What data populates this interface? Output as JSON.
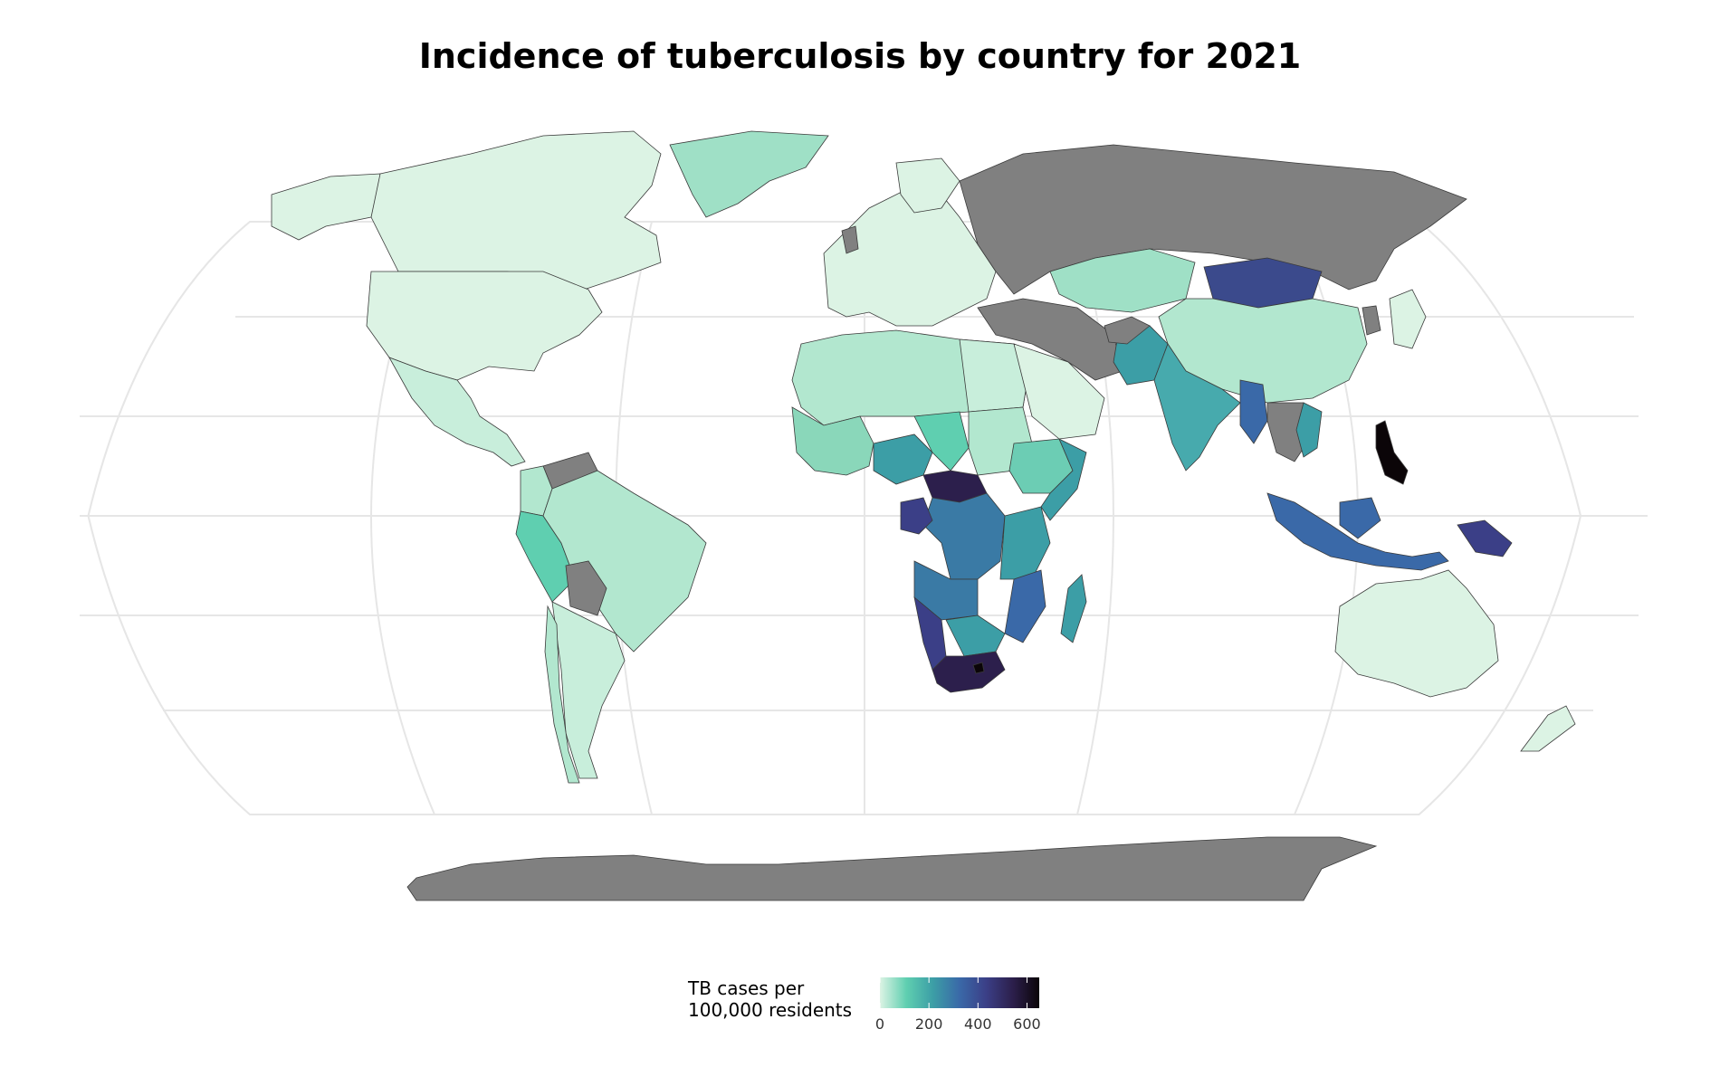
{
  "title": "Incidence of tuberculosis by country for 2021",
  "legend": {
    "title_line1": "TB cases per",
    "title_line2": "100,000 residents",
    "ticks": [
      {
        "value": 0,
        "label": "0"
      },
      {
        "value": 200,
        "label": "200"
      },
      {
        "value": 400,
        "label": "400"
      },
      {
        "value": 600,
        "label": "600"
      }
    ],
    "range": [
      0,
      650
    ],
    "colors": [
      "#dcf3e4",
      "#5fcfb0",
      "#3c9ea6",
      "#3a69a8",
      "#3b3f87",
      "#2c1f4c",
      "#0b0508"
    ]
  },
  "colors": {
    "no_data": "#808080",
    "border": "#3a3a3a",
    "graticule": "#e6e6e6"
  },
  "chart_data": {
    "type": "choropleth",
    "title": "Incidence of tuberculosis by country for 2021",
    "legend_title": "TB cases per 100,000 residents",
    "projection": "robinson",
    "grid": true,
    "values": [
      {
        "region": "Canada",
        "value": 5
      },
      {
        "region": "United States",
        "value": 3
      },
      {
        "region": "Mexico",
        "value": 25
      },
      {
        "region": "Brazil",
        "value": 48
      },
      {
        "region": "Peru",
        "value": 116
      },
      {
        "region": "Argentina",
        "value": 31
      },
      {
        "region": "Greenland",
        "value": 70
      },
      {
        "region": "Europe",
        "value": 10
      },
      {
        "region": "North Africa",
        "value": 50
      },
      {
        "region": "Nigeria",
        "value": 219
      },
      {
        "region": "Central African Republic",
        "value": 540
      },
      {
        "region": "DR Congo",
        "value": 318
      },
      {
        "region": "Angola",
        "value": 325
      },
      {
        "region": "Mozambique",
        "value": 361
      },
      {
        "region": "Namibia",
        "value": 460
      },
      {
        "region": "South Africa",
        "value": 513
      },
      {
        "region": "Lesotho",
        "value": 614
      },
      {
        "region": "Madagascar",
        "value": 233
      },
      {
        "region": "Mongolia",
        "value": 437
      },
      {
        "region": "China",
        "value": 55
      },
      {
        "region": "India",
        "value": 210
      },
      {
        "region": "Pakistan",
        "value": 264
      },
      {
        "region": "Myanmar",
        "value": 360
      },
      {
        "region": "Philippines",
        "value": 650
      },
      {
        "region": "Indonesia",
        "value": 354
      },
      {
        "region": "Papua New Guinea",
        "value": 424
      },
      {
        "region": "Australia",
        "value": 7
      },
      {
        "region": "New Zealand",
        "value": 7
      }
    ]
  }
}
